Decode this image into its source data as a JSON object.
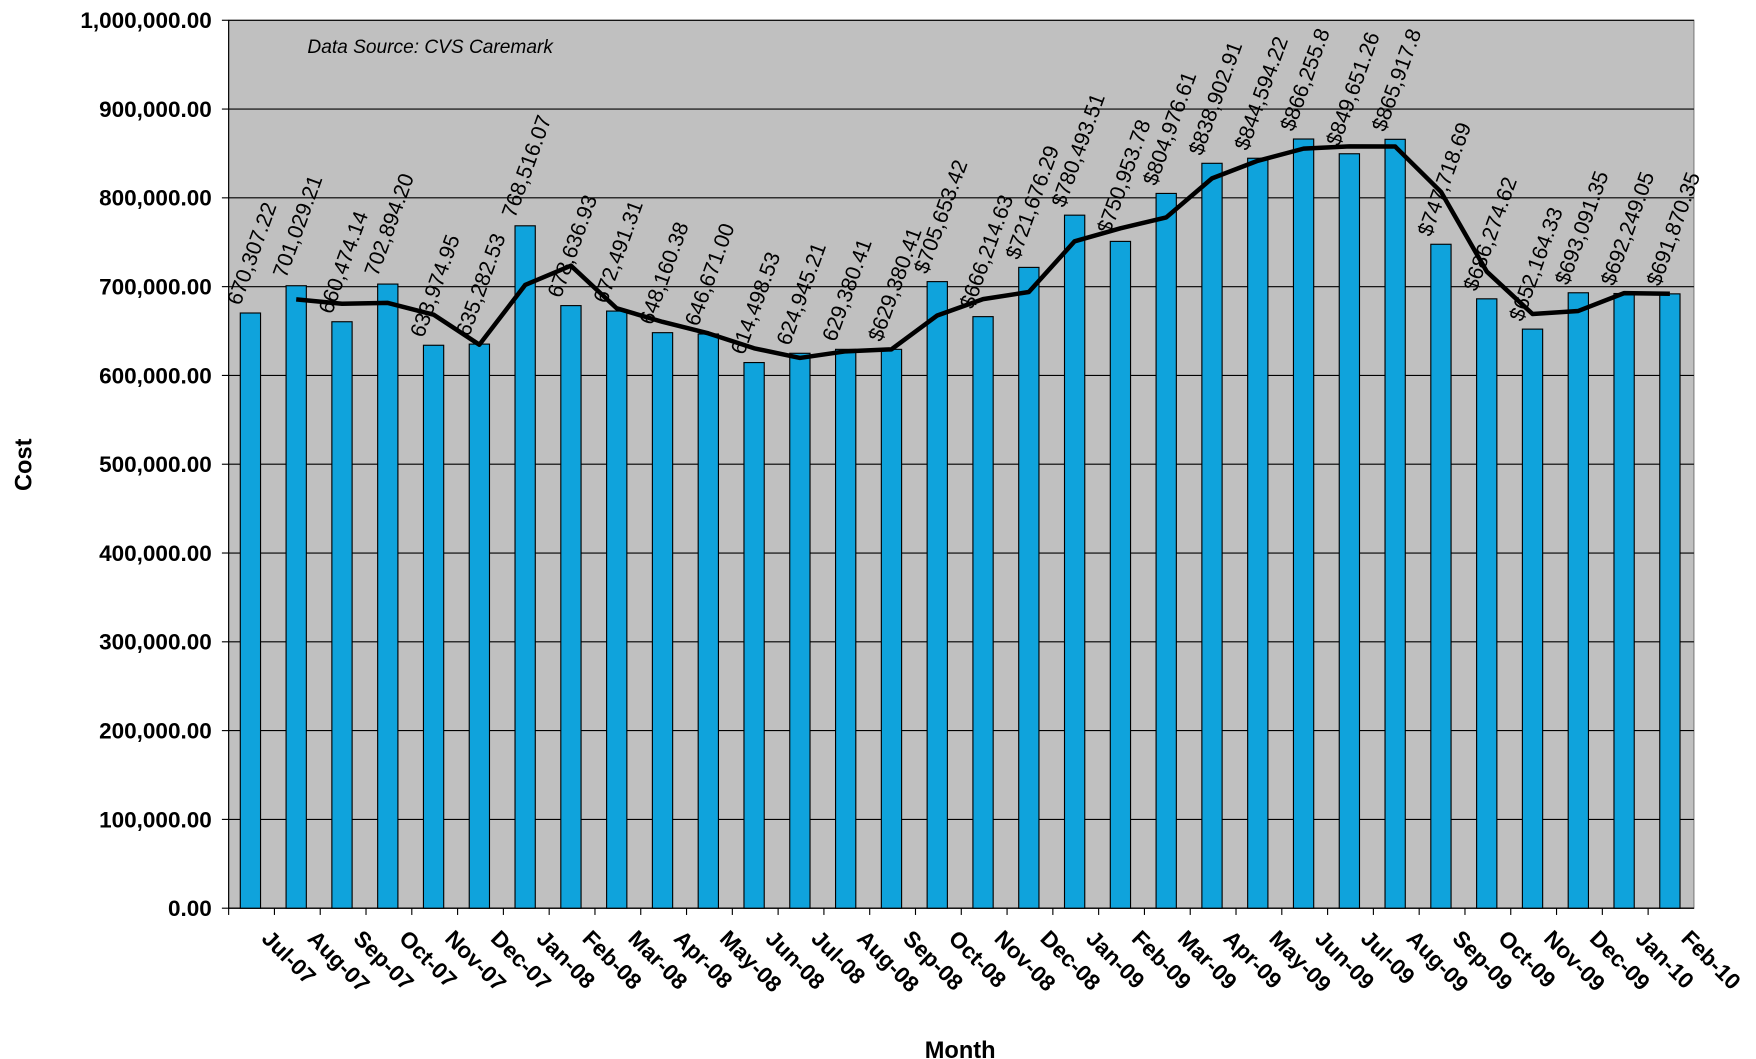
{
  "chart_data": {
    "type": "bar",
    "annotation": "Data Source: CVS Caremark",
    "x_label": "Month",
    "y_label": "Cost",
    "categories": [
      "Jul-07",
      "Aug-07",
      "Sep-07",
      "Oct-07",
      "Nov-07",
      "Dec-07",
      "Jan-08",
      "Feb-08",
      "Mar-08",
      "Apr-08",
      "May-08",
      "Jun-08",
      "Jul-08",
      "Aug-08",
      "Sep-08",
      "Oct-08",
      "Nov-08",
      "Dec-08",
      "Jan-09",
      "Feb-09",
      "Mar-09",
      "Apr-09",
      "May-09",
      "Jun-09",
      "Jul-09",
      "Aug-09",
      "Sep-09",
      "Oct-09",
      "Nov-09",
      "Dec-09",
      "Jan-10",
      "Feb-10"
    ],
    "series": [
      {
        "type": "bar",
        "color": "#0fa3dc",
        "values": [
          670307.22,
          701029.21,
          660474.14,
          702894.2,
          633974.95,
          635282.53,
          768516.07,
          678636.93,
          672491.31,
          648160.38,
          646671.0,
          614498.53,
          624945.21,
          629380.41,
          629380.41,
          705653.42,
          666214.63,
          721676.29,
          780493.51,
          750953.78,
          804976.61,
          838902.91,
          844594.22,
          866255.8,
          849651.26,
          865917.8,
          747718.69,
          686274.62,
          652164.33,
          693091.35,
          692249.05,
          691870.35
        ],
        "value_labels": [
          "670,307.22",
          "701,029.21",
          "660,474.14",
          "702,894.20",
          "633,974.95",
          "635,282.53",
          "768,516.07",
          "678,636.93",
          "672,491.31",
          "648,160.38",
          "646,671.00",
          "614,498.53",
          "624,945.21",
          "629,380.41",
          "$629,380.41",
          "$705,653.42",
          "$666,214.63",
          "$721,676.29",
          "$780,493.51",
          "$750,953.78",
          "$804,976.61",
          "$838,902.91",
          "$844,594.22",
          "$866,255.8",
          "$849,651.26",
          "$865,917.8",
          "$747,718.69",
          "$686,274.62",
          "$652,164.33",
          "$693,091.35",
          "$692,249.05",
          "$691,870.35"
        ]
      },
      {
        "type": "line",
        "color": "#000000",
        "values": [
          null,
          685668,
          680752,
          681684,
          668435,
          634629,
          701899,
          723577,
          675564,
          660326,
          647416,
          630585,
          619722,
          627163,
          629380,
          667517,
          685934,
          693945,
          751085,
          765724,
          777965,
          821940,
          841749,
          855425,
          857954,
          857785,
          806818,
          716997,
          669219,
          672628,
          692670,
          692060
        ]
      }
    ],
    "ylim": [
      0,
      1000000
    ],
    "yticks": [
      {
        "value": 0,
        "label": "0.00"
      },
      {
        "value": 100000,
        "label": "100,000.00"
      },
      {
        "value": 200000,
        "label": "200,000.00"
      },
      {
        "value": 300000,
        "label": "300,000.00"
      },
      {
        "value": 400000,
        "label": "400,000.00"
      },
      {
        "value": 500000,
        "label": "500,000.00"
      },
      {
        "value": 600000,
        "label": "600,000.00"
      },
      {
        "value": 700000,
        "label": "700,000.00"
      },
      {
        "value": 800000,
        "label": "800,000.00"
      },
      {
        "value": 900000,
        "label": "900,000.00"
      },
      {
        "value": 1000000,
        "label": "1,000,000.00"
      }
    ],
    "grid": true,
    "plot_background": "#c0c0c0"
  }
}
